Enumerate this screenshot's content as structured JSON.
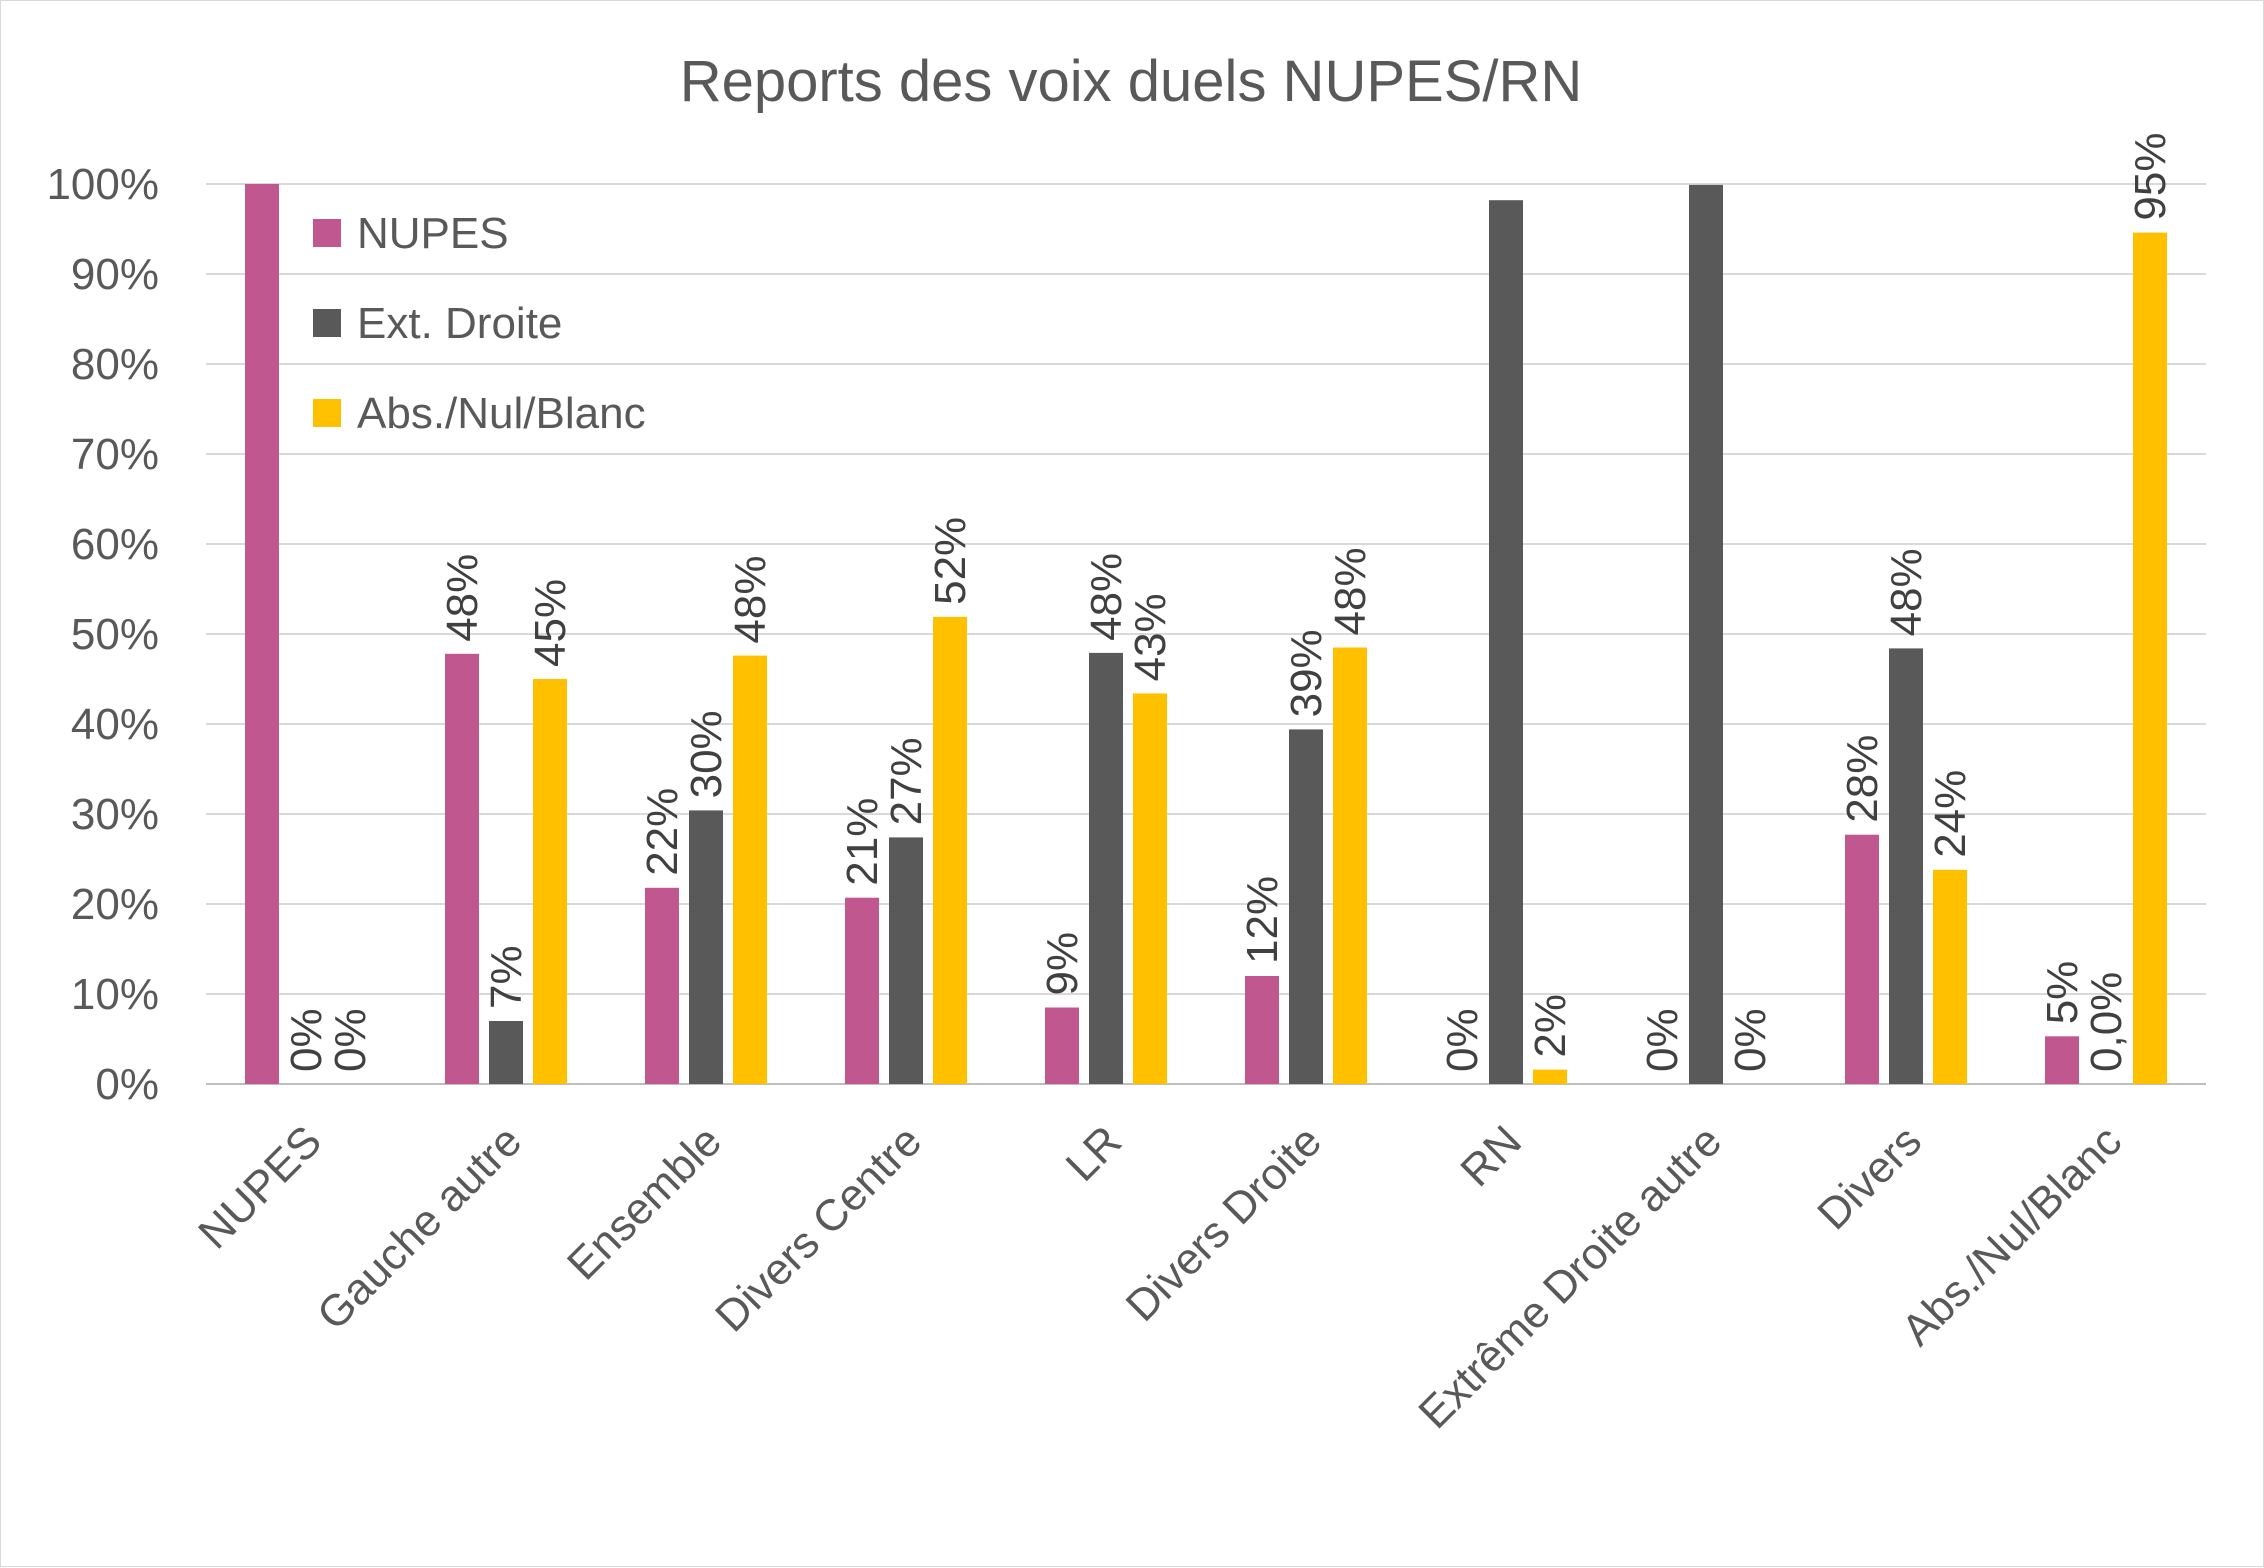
{
  "chart_data": {
    "type": "bar",
    "title": "Reports des voix duels NUPES/RN",
    "xlabel": "",
    "ylabel": "",
    "ylim": [
      0,
      100
    ],
    "yticks": [
      "0%",
      "10%",
      "20%",
      "30%",
      "40%",
      "50%",
      "60%",
      "70%",
      "80%",
      "90%",
      "100%"
    ],
    "grid": true,
    "legend_position": "top-left",
    "categories": [
      "NUPES",
      "Gauche autre",
      "Ensemble",
      "Divers Centre",
      "LR",
      "Divers Droite",
      "RN",
      "Extrême Droite autre",
      "Divers",
      "Abs./Nul/Blanc"
    ],
    "series": [
      {
        "name": "NUPES",
        "color": "#c0578f",
        "values": [
          100,
          47.8,
          21.8,
          20.7,
          8.5,
          12,
          0,
          0,
          27.7,
          5.3
        ],
        "labels": [
          "",
          "48%",
          "22%",
          "21%",
          "9%",
          "12%",
          "0%",
          "0%",
          "28%",
          "5%"
        ]
      },
      {
        "name": "Ext. Droite",
        "color": "#595959",
        "values": [
          0,
          7,
          30.4,
          27.4,
          47.9,
          39.4,
          98.2,
          99.9,
          48.4,
          0
        ],
        "labels": [
          "0%",
          "7%",
          "30%",
          "27%",
          "48%",
          "39%",
          "",
          "",
          "48%",
          "0,0%"
        ]
      },
      {
        "name": "Abs./Nul/Blanc",
        "color": "#ffc000",
        "values": [
          0,
          45,
          47.6,
          51.9,
          43.4,
          48.5,
          1.6,
          0,
          23.8,
          94.6
        ],
        "labels": [
          "0%",
          "45%",
          "48%",
          "52%",
          "43%",
          "48%",
          "2%",
          "0%",
          "24%",
          "95%"
        ]
      }
    ]
  }
}
